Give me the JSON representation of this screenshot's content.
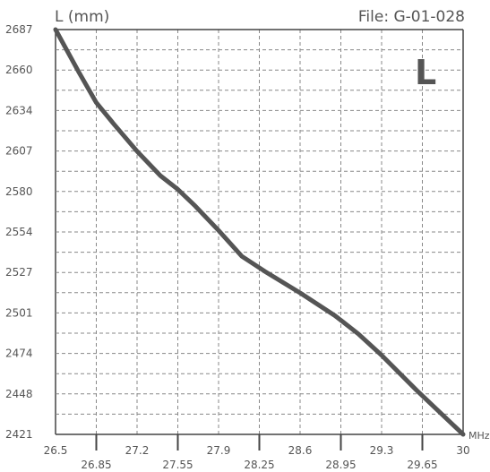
{
  "chart_data": {
    "type": "line",
    "ylabel": "L (mm)",
    "file_label": "File:  G-01-028",
    "corner_mark": "L",
    "x_unit": "MHz",
    "xlim": [
      26.5,
      30
    ],
    "ylim": [
      2421,
      2687
    ],
    "x_ticks_top": [
      "26.5",
      "27.2",
      "27.9",
      "28.6",
      "29.3",
      "30"
    ],
    "x_ticks_bottom": [
      "26.85",
      "27.55",
      "28.25",
      "28.95",
      "29.65"
    ],
    "y_ticks": [
      "2687",
      "2660",
      "2634",
      "2607",
      "2580",
      "2554",
      "2527",
      "2501",
      "2474",
      "2448",
      "2421"
    ],
    "grid": true,
    "series": [
      {
        "x": [
          26.5,
          26.7,
          26.85,
          27.0,
          27.2,
          27.4,
          27.55,
          27.7,
          27.9,
          28.1,
          28.3,
          28.6,
          28.9,
          29.1,
          29.3,
          29.6,
          30.0
        ],
        "y": [
          2687,
          2659,
          2639,
          2625,
          2607,
          2591,
          2582,
          2571,
          2555,
          2538,
          2528,
          2514,
          2499,
          2487,
          2473,
          2450,
          2421
        ],
        "color": "#555555"
      }
    ]
  }
}
